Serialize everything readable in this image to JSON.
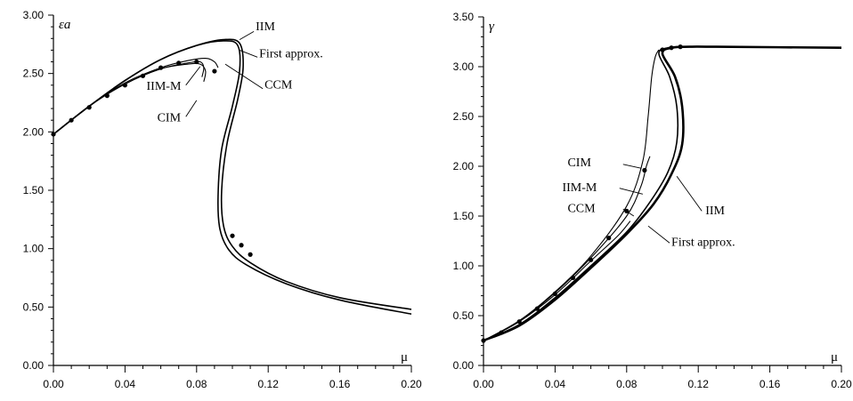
{
  "chart_data": [
    {
      "type": "line",
      "xlabel": "μ",
      "ylabel": "εa",
      "xlim": [
        0,
        0.2
      ],
      "ylim": [
        0,
        3.0
      ],
      "xticks": [
        "0.00",
        "0.04",
        "0.08",
        "0.12",
        "0.16",
        "0.20"
      ],
      "yticks": [
        "0.00",
        "0.50",
        "1.00",
        "1.50",
        "2.00",
        "2.50",
        "3.00"
      ],
      "grid": false,
      "series": [
        {
          "name": "IIM",
          "x": [
            0,
            0.02,
            0.04,
            0.06,
            0.08,
            0.095,
            0.104,
            0.106,
            0.103,
            0.097,
            0.094,
            0.095,
            0.1,
            0.11,
            0.13,
            0.16,
            0.2
          ],
          "y": [
            1.98,
            2.22,
            2.44,
            2.62,
            2.74,
            2.79,
            2.76,
            2.55,
            2.28,
            1.9,
            1.5,
            1.2,
            1.02,
            0.88,
            0.72,
            0.58,
            0.48
          ]
        },
        {
          "name": "First approx.",
          "x": [
            0,
            0.02,
            0.04,
            0.06,
            0.08,
            0.095,
            0.103,
            0.104,
            0.1,
            0.094,
            0.092,
            0.093,
            0.098,
            0.108,
            0.13,
            0.16,
            0.2
          ],
          "y": [
            1.98,
            2.22,
            2.44,
            2.62,
            2.74,
            2.78,
            2.74,
            2.52,
            2.22,
            1.85,
            1.45,
            1.17,
            0.99,
            0.86,
            0.7,
            0.56,
            0.44
          ]
        },
        {
          "name": "CCM",
          "x": [
            0,
            0.02,
            0.04,
            0.06,
            0.075,
            0.085,
            0.09,
            0.092
          ],
          "y": [
            1.98,
            2.22,
            2.42,
            2.55,
            2.61,
            2.63,
            2.6,
            2.55
          ]
        },
        {
          "name": "IIM-M",
          "x": [
            0,
            0.02,
            0.04,
            0.06,
            0.075,
            0.082,
            0.084,
            0.083
          ],
          "y": [
            1.98,
            2.22,
            2.41,
            2.54,
            2.59,
            2.6,
            2.55,
            2.47
          ]
        },
        {
          "name": "CIM",
          "x": [
            0,
            0.02,
            0.04,
            0.06,
            0.075,
            0.082,
            0.085,
            0.084
          ],
          "y": [
            1.98,
            2.22,
            2.41,
            2.54,
            2.58,
            2.58,
            2.52,
            2.43
          ]
        },
        {
          "name": "markers",
          "style": "points",
          "x": [
            0,
            0.01,
            0.02,
            0.03,
            0.04,
            0.05,
            0.06,
            0.07,
            0.08,
            0.09,
            0.1,
            0.105,
            0.11
          ],
          "y": [
            1.98,
            2.1,
            2.21,
            2.31,
            2.4,
            2.48,
            2.55,
            2.59,
            2.6,
            2.52,
            1.11,
            1.03,
            0.95
          ]
        }
      ],
      "annotations": [
        {
          "text": "IIM",
          "x": 0.113,
          "y": 2.87
        },
        {
          "text": "First approx.",
          "x": 0.115,
          "y": 2.64
        },
        {
          "text": "CCM",
          "x": 0.118,
          "y": 2.37
        },
        {
          "text": "IIM-M",
          "x": 0.052,
          "y": 2.36
        },
        {
          "text": "CIM",
          "x": 0.058,
          "y": 2.09
        }
      ]
    },
    {
      "type": "line",
      "xlabel": "μ",
      "ylabel": "γ",
      "xlim": [
        0,
        0.2
      ],
      "ylim": [
        0,
        3.5
      ],
      "xticks": [
        "0.00",
        "0.04",
        "0.08",
        "0.12",
        "0.16",
        "0.20"
      ],
      "yticks": [
        "0.00",
        "0.50",
        "1.00",
        "1.50",
        "2.00",
        "2.50",
        "3.00",
        "3.50"
      ],
      "grid": false,
      "series": [
        {
          "name": "IIM",
          "x": [
            0,
            0.02,
            0.04,
            0.06,
            0.08,
            0.095,
            0.105,
            0.111,
            0.111,
            0.107,
            0.1,
            0.105,
            0.115,
            0.13,
            0.2
          ],
          "y": [
            0.25,
            0.4,
            0.66,
            0.98,
            1.32,
            1.62,
            1.92,
            2.22,
            2.6,
            2.9,
            3.13,
            3.19,
            3.2,
            3.2,
            3.19
          ],
          "style": "thick"
        },
        {
          "name": "First approx.",
          "x": [
            0,
            0.02,
            0.04,
            0.06,
            0.08,
            0.093,
            0.103,
            0.108,
            0.108,
            0.104,
            0.098,
            0.103,
            0.115,
            0.13,
            0.2
          ],
          "y": [
            0.25,
            0.41,
            0.68,
            1.0,
            1.34,
            1.64,
            1.94,
            2.24,
            2.6,
            2.9,
            3.13,
            3.19,
            3.2,
            3.2,
            3.19
          ]
        },
        {
          "name": "CIM",
          "x": [
            0,
            0.02,
            0.04,
            0.06,
            0.08,
            0.089,
            0.092,
            0.094,
            0.096,
            0.098
          ],
          "y": [
            0.25,
            0.45,
            0.74,
            1.1,
            1.6,
            2.05,
            2.5,
            2.9,
            3.1,
            3.17
          ]
        },
        {
          "name": "IIM-M",
          "x": [
            0,
            0.02,
            0.04,
            0.06,
            0.08,
            0.088,
            0.091,
            0.093
          ],
          "y": [
            0.25,
            0.44,
            0.73,
            1.08,
            1.5,
            1.8,
            2.0,
            2.1
          ]
        },
        {
          "name": "CCM",
          "x": [
            0,
            0.02,
            0.04,
            0.06,
            0.075,
            0.082
          ],
          "y": [
            0.25,
            0.44,
            0.71,
            1.05,
            1.3,
            1.45
          ]
        },
        {
          "name": "markers",
          "style": "points",
          "x": [
            0,
            0.01,
            0.02,
            0.03,
            0.04,
            0.05,
            0.06,
            0.07,
            0.08,
            0.09,
            0.1,
            0.105,
            0.11
          ],
          "y": [
            0.25,
            0.33,
            0.44,
            0.57,
            0.72,
            0.88,
            1.06,
            1.28,
            1.55,
            1.96,
            3.17,
            3.19,
            3.2
          ]
        }
      ],
      "annotations": [
        {
          "text": "CIM",
          "x": 0.047,
          "y": 2.0
        },
        {
          "text": "IIM-M",
          "x": 0.044,
          "y": 1.75
        },
        {
          "text": "CCM",
          "x": 0.047,
          "y": 1.54
        },
        {
          "text": "IIM",
          "x": 0.124,
          "y": 1.52
        },
        {
          "text": "First approx.",
          "x": 0.105,
          "y": 1.2
        }
      ]
    }
  ]
}
